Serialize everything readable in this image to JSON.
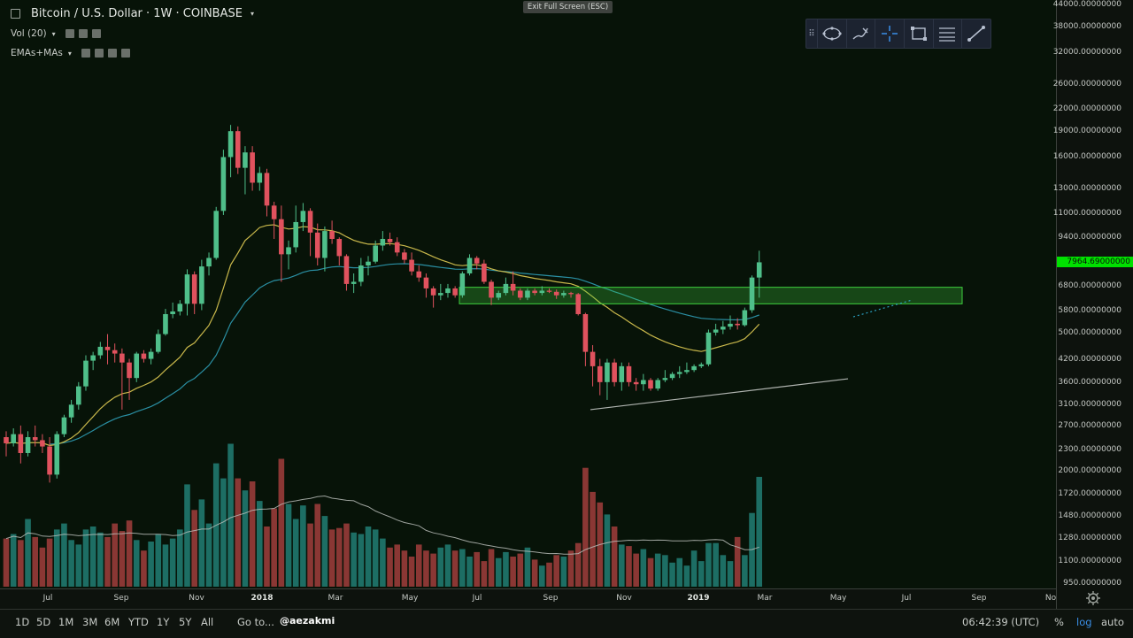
{
  "header": {
    "symbol_title": "Bitcoin / U.S. Dollar · 1W · COINBASE",
    "indicator_vol": "Vol (20)",
    "indicator_emas": "EMAs+MAs",
    "exit_fullscreen": "Exit Full Screen (ESC)"
  },
  "drawing_toolbar": {
    "tools": [
      "drag-handle-icon",
      "shapes-icon",
      "brush-icon",
      "crosshair-icon",
      "rectangle-icon",
      "fib-icon",
      "trend-line-icon"
    ]
  },
  "price_axis": {
    "labels": [
      "44000.00000000",
      "38000.00000000",
      "32000.00000000",
      "26000.00000000",
      "22000.00000000",
      "19000.00000000",
      "16000.00000000",
      "13000.00000000",
      "11000.00000000",
      "9400.00000000",
      "6800.00000000",
      "5800.00000000",
      "5000.00000000",
      "4200.00000000",
      "3600.00000000",
      "3100.00000000",
      "2700.00000000",
      "2300.00000000",
      "2000.00000000",
      "1720.00000000",
      "1480.00000000",
      "1280.00000000",
      "1100.00000000",
      "950.00000000"
    ],
    "current_price": "7964.69000000",
    "current_price_color": "#00e000"
  },
  "time_axis": {
    "labels": [
      {
        "text": "Jul",
        "bold": false
      },
      {
        "text": "Sep",
        "bold": false
      },
      {
        "text": "Nov",
        "bold": false
      },
      {
        "text": "2018",
        "bold": true
      },
      {
        "text": "Mar",
        "bold": false
      },
      {
        "text": "May",
        "bold": false
      },
      {
        "text": "Jul",
        "bold": false
      },
      {
        "text": "Sep",
        "bold": false
      },
      {
        "text": "Nov",
        "bold": false
      },
      {
        "text": "2019",
        "bold": true
      },
      {
        "text": "Mar",
        "bold": false
      },
      {
        "text": "May",
        "bold": false
      },
      {
        "text": "Jul",
        "bold": false
      },
      {
        "text": "Sep",
        "bold": false
      },
      {
        "text": "No",
        "bold": false
      }
    ]
  },
  "bottom_bar": {
    "ranges": [
      "1D",
      "5D",
      "1M",
      "3M",
      "6M",
      "YTD",
      "1Y",
      "5Y",
      "All"
    ],
    "goto": "Go to...",
    "watermark": "@aezakmi",
    "clock": "06:42:39 (UTC)",
    "percent": "%",
    "log": "log",
    "auto": "auto"
  },
  "colors": {
    "up": "#26a69a",
    "up_candle": "#4fbf8a",
    "down": "#ef5350",
    "down_candle": "#e0525e",
    "ema_short": "#c9b84b",
    "ema_long": "#2a8fa3",
    "zone": "#3fd23f",
    "volume_ma": "#b8bdb8"
  },
  "chart_data": {
    "type": "candlestick",
    "title": "Bitcoin / U.S. Dollar · 1W · COINBASE",
    "xlabel": "",
    "ylabel": "",
    "log_scale": true,
    "ylim": [
      950,
      44000
    ],
    "x_range": [
      "Jun 2017",
      "Nov 2019"
    ],
    "candles": [
      [
        2500,
        2600,
        2200,
        2400
      ],
      [
        2400,
        2650,
        2350,
        2550
      ],
      [
        2550,
        2700,
        2100,
        2250
      ],
      [
        2250,
        2600,
        2200,
        2500
      ],
      [
        2500,
        2700,
        2350,
        2450
      ],
      [
        2450,
        2550,
        2250,
        2350
      ],
      [
        2350,
        2500,
        1850,
        1950
      ],
      [
        1950,
        2600,
        1900,
        2550
      ],
      [
        2550,
        2900,
        2500,
        2850
      ],
      [
        2850,
        3200,
        2750,
        3100
      ],
      [
        3100,
        3600,
        3000,
        3500
      ],
      [
        3500,
        4300,
        3400,
        4150
      ],
      [
        4150,
        4400,
        3900,
        4300
      ],
      [
        4300,
        4700,
        4200,
        4550
      ],
      [
        4550,
        4950,
        4050,
        4450
      ],
      [
        4450,
        4650,
        4100,
        4350
      ],
      [
        4350,
        4500,
        3000,
        4100
      ],
      [
        4100,
        4200,
        3200,
        3700
      ],
      [
        3700,
        4400,
        3600,
        4350
      ],
      [
        4350,
        4450,
        4100,
        4200
      ],
      [
        4200,
        4500,
        4050,
        4400
      ],
      [
        4400,
        5100,
        4350,
        4950
      ],
      [
        4950,
        5850,
        4900,
        5650
      ],
      [
        5650,
        6100,
        5500,
        5750
      ],
      [
        5750,
        6200,
        5600,
        6050
      ],
      [
        6050,
        7600,
        5600,
        7350
      ],
      [
        7350,
        7500,
        5650,
        6050
      ],
      [
        6050,
        8100,
        5800,
        7750
      ],
      [
        7750,
        8500,
        7300,
        8200
      ],
      [
        8200,
        11500,
        8100,
        11200
      ],
      [
        11200,
        16800,
        10900,
        16000
      ],
      [
        16000,
        19800,
        14000,
        19000
      ],
      [
        19000,
        19600,
        14300,
        14900
      ],
      [
        14900,
        17200,
        12500,
        16500
      ],
      [
        16500,
        17200,
        12800,
        13500
      ],
      [
        13500,
        15000,
        12800,
        14400
      ],
      [
        14400,
        14800,
        10800,
        11600
      ],
      [
        11600,
        11900,
        9300,
        10600
      ],
      [
        10600,
        11600,
        7000,
        8400
      ],
      [
        8400,
        9200,
        7600,
        8800
      ],
      [
        8800,
        11600,
        8500,
        10400
      ],
      [
        10400,
        11800,
        9800,
        11200
      ],
      [
        11200,
        11400,
        8300,
        9700
      ],
      [
        9700,
        10300,
        7800,
        8200
      ],
      [
        8200,
        10100,
        7500,
        9800
      ],
      [
        9800,
        10500,
        9000,
        9300
      ],
      [
        9300,
        9400,
        7800,
        8300
      ],
      [
        8300,
        8400,
        6600,
        6900
      ],
      [
        6900,
        7400,
        6500,
        7000
      ],
      [
        7000,
        8200,
        6800,
        7800
      ],
      [
        7800,
        8300,
        7300,
        8000
      ],
      [
        8000,
        9200,
        7900,
        8900
      ],
      [
        8900,
        9800,
        8600,
        9300
      ],
      [
        9300,
        9700,
        8900,
        9100
      ],
      [
        9100,
        9400,
        8300,
        8500
      ],
      [
        8500,
        8700,
        7900,
        8100
      ],
      [
        8100,
        8500,
        7300,
        7500
      ],
      [
        7500,
        7800,
        7000,
        7200
      ],
      [
        7200,
        7400,
        6300,
        6700
      ],
      [
        6700,
        6800,
        5900,
        6400
      ],
      [
        6400,
        6900,
        6200,
        6500
      ],
      [
        6500,
        6900,
        6300,
        6700
      ],
      [
        6700,
        6800,
        6300,
        6400
      ],
      [
        6400,
        7500,
        6300,
        7400
      ],
      [
        7400,
        8400,
        7300,
        8200
      ],
      [
        8200,
        8300,
        7600,
        7900
      ],
      [
        7900,
        8100,
        6900,
        7000
      ],
      [
        7000,
        7100,
        6000,
        6300
      ],
      [
        6300,
        6600,
        6200,
        6500
      ],
      [
        6500,
        7200,
        6400,
        6900
      ],
      [
        6900,
        7500,
        6400,
        6600
      ],
      [
        6600,
        6700,
        6200,
        6300
      ],
      [
        6300,
        6700,
        6200,
        6600
      ],
      [
        6600,
        6700,
        6400,
        6500
      ],
      [
        6500,
        6800,
        6400,
        6600
      ],
      [
        6600,
        6700,
        6500,
        6550
      ],
      [
        6550,
        6650,
        6250,
        6400
      ],
      [
        6400,
        6600,
        6300,
        6500
      ],
      [
        6500,
        6550,
        6300,
        6450
      ],
      [
        6450,
        6500,
        5600,
        5650
      ],
      [
        5650,
        5700,
        4000,
        4400
      ],
      [
        4400,
        4600,
        3500,
        4000
      ],
      [
        4000,
        4200,
        3300,
        3600
      ],
      [
        3600,
        4200,
        3200,
        4100
      ],
      [
        4100,
        4200,
        3500,
        3600
      ],
      [
        3600,
        4100,
        3400,
        4000
      ],
      [
        4000,
        4100,
        3500,
        3600
      ],
      [
        3600,
        3700,
        3400,
        3550
      ],
      [
        3550,
        3800,
        3400,
        3650
      ],
      [
        3650,
        3700,
        3400,
        3450
      ],
      [
        3450,
        3700,
        3400,
        3650
      ],
      [
        3650,
        3900,
        3600,
        3700
      ],
      [
        3700,
        3850,
        3650,
        3800
      ],
      [
        3800,
        4000,
        3700,
        3850
      ],
      [
        3850,
        4100,
        3800,
        3900
      ],
      [
        3900,
        4050,
        3850,
        4000
      ],
      [
        4000,
        4100,
        3950,
        4050
      ],
      [
        4050,
        5100,
        4000,
        5000
      ],
      [
        5000,
        5300,
        4900,
        5100
      ],
      [
        5100,
        5400,
        4950,
        5200
      ],
      [
        5200,
        5600,
        5100,
        5300
      ],
      [
        5300,
        5500,
        5100,
        5250
      ],
      [
        5250,
        5900,
        5200,
        5800
      ],
      [
        5800,
        7300,
        5700,
        7200
      ],
      [
        7200,
        8600,
        6300,
        7964.69
      ]
    ],
    "volume_relative": [
      0.32,
      0.35,
      0.31,
      0.45,
      0.33,
      0.26,
      0.32,
      0.38,
      0.42,
      0.31,
      0.28,
      0.38,
      0.4,
      0.36,
      0.33,
      0.42,
      0.37,
      0.44,
      0.31,
      0.24,
      0.3,
      0.35,
      0.28,
      0.32,
      0.38,
      0.68,
      0.51,
      0.58,
      0.42,
      0.82,
      0.72,
      0.95,
      0.72,
      0.64,
      0.7,
      0.57,
      0.4,
      0.52,
      0.85,
      0.55,
      0.45,
      0.54,
      0.42,
      0.55,
      0.47,
      0.38,
      0.39,
      0.42,
      0.36,
      0.35,
      0.4,
      0.38,
      0.32,
      0.26,
      0.28,
      0.24,
      0.2,
      0.28,
      0.24,
      0.22,
      0.26,
      0.28,
      0.24,
      0.25,
      0.2,
      0.23,
      0.17,
      0.25,
      0.19,
      0.23,
      0.2,
      0.22,
      0.26,
      0.18,
      0.14,
      0.16,
      0.21,
      0.2,
      0.24,
      0.29,
      0.79,
      0.63,
      0.56,
      0.48,
      0.4,
      0.28,
      0.27,
      0.22,
      0.25,
      0.19,
      0.22,
      0.21,
      0.16,
      0.19,
      0.14,
      0.24,
      0.17,
      0.29,
      0.29,
      0.21,
      0.17,
      0.33,
      0.21,
      0.49,
      0.73
    ]
  }
}
